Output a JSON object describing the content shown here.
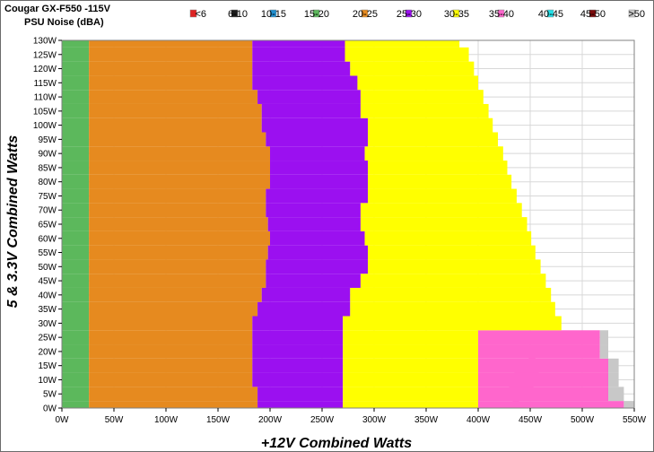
{
  "chart_data": {
    "type": "heatmap",
    "title": "Cougar GX-F550 -115V",
    "subtitle": "PSU Noise (dBA)",
    "xlabel": "+12V Combined Watts",
    "ylabel": "5 & 3.3V Combined Watts",
    "xlim": [
      0,
      550
    ],
    "ylim": [
      0,
      130
    ],
    "x_ticks": [
      "0W",
      "50W",
      "100W",
      "150W",
      "200W",
      "250W",
      "300W",
      "350W",
      "400W",
      "450W",
      "500W",
      "550W"
    ],
    "y_ticks": [
      "0W",
      "5W",
      "10W",
      "15W",
      "20W",
      "25W",
      "30W",
      "35W",
      "40W",
      "45W",
      "50W",
      "55W",
      "60W",
      "65W",
      "70W",
      "75W",
      "80W",
      "85W",
      "90W",
      "95W",
      "100W",
      "105W",
      "110W",
      "115W",
      "120W",
      "125W",
      "130W"
    ],
    "legend": [
      {
        "label": "<6",
        "color": "#dd2222"
      },
      {
        "label": "6-10",
        "color": "#1a1a1a"
      },
      {
        "label": "10-15",
        "color": "#1f8fd0"
      },
      {
        "label": "15-20",
        "color": "#5cb85c"
      },
      {
        "label": "20-25",
        "color": "#e68a1f"
      },
      {
        "label": "25-30",
        "color": "#9b10f0"
      },
      {
        "label": "30-35",
        "color": "#ffff00"
      },
      {
        "label": "35-40",
        "color": "#ff66cc"
      },
      {
        "label": "40-45",
        "color": "#22e0e8"
      },
      {
        "label": "45-50",
        "color": "#7a0a0a"
      },
      {
        "label": ">50",
        "color": "#c8c8c8"
      }
    ],
    "rows": [
      {
        "y": 0,
        "b": [
          26,
          188,
          270,
          400,
          540,
          550
        ]
      },
      {
        "y": 5,
        "b": [
          26,
          188,
          270,
          400,
          525,
          540
        ]
      },
      {
        "y": 10,
        "b": [
          26,
          183,
          270,
          400,
          525,
          535
        ]
      },
      {
        "y": 15,
        "b": [
          26,
          183,
          270,
          400,
          525,
          535
        ]
      },
      {
        "y": 20,
        "b": [
          26,
          183,
          270,
          400,
          517,
          525
        ]
      },
      {
        "y": 25,
        "b": [
          26,
          183,
          270,
          400,
          517,
          525
        ]
      },
      {
        "y": 30,
        "b": [
          26,
          183,
          270,
          480,
          480,
          480
        ]
      },
      {
        "y": 35,
        "b": [
          26,
          188,
          277,
          474,
          474,
          474
        ]
      },
      {
        "y": 40,
        "b": [
          26,
          192,
          277,
          470,
          470,
          470
        ]
      },
      {
        "y": 45,
        "b": [
          26,
          196,
          287,
          465,
          465,
          465
        ]
      },
      {
        "y": 50,
        "b": [
          26,
          196,
          294,
          460,
          460,
          460
        ]
      },
      {
        "y": 55,
        "b": [
          26,
          198,
          294,
          455,
          455,
          455
        ]
      },
      {
        "y": 60,
        "b": [
          26,
          200,
          291,
          451,
          451,
          451
        ]
      },
      {
        "y": 65,
        "b": [
          26,
          198,
          287,
          447,
          447,
          447
        ]
      },
      {
        "y": 70,
        "b": [
          26,
          196,
          287,
          442,
          442,
          442
        ]
      },
      {
        "y": 75,
        "b": [
          26,
          196,
          294,
          437,
          437,
          437
        ]
      },
      {
        "y": 80,
        "b": [
          26,
          200,
          294,
          432,
          432,
          432
        ]
      },
      {
        "y": 85,
        "b": [
          26,
          200,
          294,
          428,
          428,
          428
        ]
      },
      {
        "y": 90,
        "b": [
          26,
          200,
          291,
          424,
          424,
          424
        ]
      },
      {
        "y": 95,
        "b": [
          26,
          196,
          294,
          419,
          419,
          419
        ]
      },
      {
        "y": 100,
        "b": [
          26,
          192,
          294,
          414,
          414,
          414
        ]
      },
      {
        "y": 105,
        "b": [
          26,
          192,
          287,
          410,
          410,
          410
        ]
      },
      {
        "y": 110,
        "b": [
          26,
          188,
          287,
          405,
          405,
          405
        ]
      },
      {
        "y": 115,
        "b": [
          26,
          183,
          284,
          400,
          400,
          400
        ]
      },
      {
        "y": 120,
        "b": [
          26,
          183,
          277,
          396,
          396,
          396
        ]
      },
      {
        "y": 125,
        "b": [
          26,
          183,
          272,
          391,
          391,
          391
        ]
      },
      {
        "y": 130,
        "b": [
          26,
          183,
          272,
          382,
          382,
          382
        ]
      }
    ],
    "grid": true,
    "legend_position": "top-right"
  }
}
